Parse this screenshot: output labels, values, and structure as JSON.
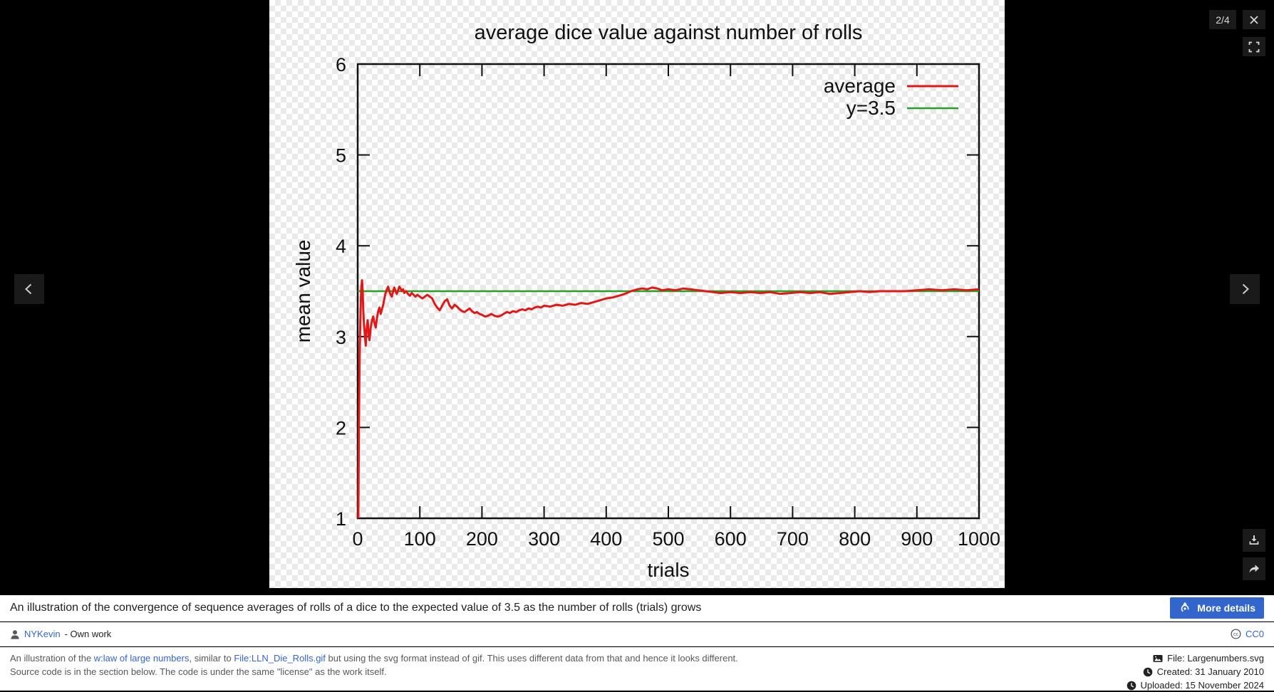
{
  "viewer": {
    "counter": "2/4"
  },
  "caption": {
    "text": "An illustration of the convergence of sequence averages of rolls of a dice to the expected value of 3.5 as the number of rolls (trials) grows",
    "more_details_label": "More details"
  },
  "meta": {
    "author": "NYKevin",
    "author_suffix": "- Own work",
    "license": "CC0"
  },
  "description": {
    "part1": "An illustration of the ",
    "link1": "w:law of large numbers",
    "part2": ", similar to ",
    "link2": "File:LLN_Die_Rolls.gif",
    "part3": " but using the svg format instead of gif. This uses different data from that and hence it looks different.",
    "line2": "Source code is in the section below. The code is under the same \"license\" as the work itself."
  },
  "file_info": [
    {
      "icon": "image-icon",
      "label": "File: Largenumbers.svg"
    },
    {
      "icon": "clock-icon",
      "label": "Created: 31 January 2010"
    },
    {
      "icon": "clock-icon",
      "label": "Uploaded: 15 November 2024"
    }
  ],
  "colors": {
    "accent_blue": "#3366cc",
    "line_red": "#e01818",
    "line_green": "#28a028",
    "canvas_checker": "#e9e9e9"
  },
  "chart_data": {
    "type": "line",
    "title": "average dice value against number of rolls",
    "xlabel": "trials",
    "ylabel": "mean value",
    "xlim": [
      0,
      1000
    ],
    "ylim": [
      1,
      6
    ],
    "x_ticks": [
      0,
      100,
      200,
      300,
      400,
      500,
      600,
      700,
      800,
      900,
      1000
    ],
    "y_ticks": [
      1,
      2,
      3,
      4,
      5,
      6
    ],
    "grid": false,
    "legend_position": "top-right",
    "series": [
      {
        "name": "average",
        "color": "#e01818",
        "width": 3,
        "points": [
          [
            1,
            1.0
          ],
          [
            2,
            2.0
          ],
          [
            3,
            2.7
          ],
          [
            4,
            3.1
          ],
          [
            5,
            3.4
          ],
          [
            6,
            3.55
          ],
          [
            7,
            3.62
          ],
          [
            8,
            3.5
          ],
          [
            9,
            3.3
          ],
          [
            10,
            3.15
          ],
          [
            12,
            2.98
          ],
          [
            13,
            2.9
          ],
          [
            14,
            3.05
          ],
          [
            15,
            3.12
          ],
          [
            16,
            3.18
          ],
          [
            17,
            3.1
          ],
          [
            18,
            3.0
          ],
          [
            19,
            2.96
          ],
          [
            21,
            3.1
          ],
          [
            23,
            3.18
          ],
          [
            25,
            3.22
          ],
          [
            27,
            3.15
          ],
          [
            29,
            3.1
          ],
          [
            31,
            3.2
          ],
          [
            33,
            3.28
          ],
          [
            35,
            3.32
          ],
          [
            37,
            3.25
          ],
          [
            39,
            3.3
          ],
          [
            41,
            3.35
          ],
          [
            43,
            3.42
          ],
          [
            45,
            3.48
          ],
          [
            47,
            3.52
          ],
          [
            49,
            3.55
          ],
          [
            51,
            3.5
          ],
          [
            53,
            3.46
          ],
          [
            55,
            3.44
          ],
          [
            57,
            3.5
          ],
          [
            59,
            3.54
          ],
          [
            61,
            3.5
          ],
          [
            63,
            3.47
          ],
          [
            65,
            3.51
          ],
          [
            67,
            3.55
          ],
          [
            69,
            3.53
          ],
          [
            71,
            3.5
          ],
          [
            73,
            3.52
          ],
          [
            75,
            3.48
          ],
          [
            78,
            3.5
          ],
          [
            81,
            3.47
          ],
          [
            84,
            3.45
          ],
          [
            87,
            3.48
          ],
          [
            90,
            3.46
          ],
          [
            93,
            3.44
          ],
          [
            96,
            3.46
          ],
          [
            100,
            3.44
          ],
          [
            104,
            3.42
          ],
          [
            108,
            3.44
          ],
          [
            112,
            3.46
          ],
          [
            116,
            3.44
          ],
          [
            120,
            3.42
          ],
          [
            124,
            3.36
          ],
          [
            128,
            3.32
          ],
          [
            132,
            3.29
          ],
          [
            136,
            3.34
          ],
          [
            140,
            3.39
          ],
          [
            144,
            3.41
          ],
          [
            148,
            3.34
          ],
          [
            152,
            3.31
          ],
          [
            156,
            3.35
          ],
          [
            160,
            3.33
          ],
          [
            164,
            3.3
          ],
          [
            168,
            3.28
          ],
          [
            172,
            3.27
          ],
          [
            176,
            3.29
          ],
          [
            180,
            3.31
          ],
          [
            184,
            3.28
          ],
          [
            188,
            3.26
          ],
          [
            192,
            3.27
          ],
          [
            196,
            3.25
          ],
          [
            200,
            3.24
          ],
          [
            205,
            3.22
          ],
          [
            210,
            3.23
          ],
          [
            215,
            3.25
          ],
          [
            220,
            3.23
          ],
          [
            225,
            3.22
          ],
          [
            230,
            3.23
          ],
          [
            235,
            3.25
          ],
          [
            240,
            3.27
          ],
          [
            245,
            3.26
          ],
          [
            250,
            3.28
          ],
          [
            255,
            3.27
          ],
          [
            260,
            3.29
          ],
          [
            265,
            3.3
          ],
          [
            270,
            3.29
          ],
          [
            275,
            3.31
          ],
          [
            280,
            3.3
          ],
          [
            285,
            3.32
          ],
          [
            290,
            3.33
          ],
          [
            295,
            3.32
          ],
          [
            300,
            3.34
          ],
          [
            310,
            3.33
          ],
          [
            320,
            3.35
          ],
          [
            330,
            3.34
          ],
          [
            340,
            3.36
          ],
          [
            350,
            3.35
          ],
          [
            360,
            3.37
          ],
          [
            370,
            3.36
          ],
          [
            380,
            3.38
          ],
          [
            390,
            3.4
          ],
          [
            400,
            3.42
          ],
          [
            410,
            3.43
          ],
          [
            420,
            3.45
          ],
          [
            430,
            3.47
          ],
          [
            440,
            3.5
          ],
          [
            450,
            3.52
          ],
          [
            458,
            3.53
          ],
          [
            466,
            3.52
          ],
          [
            474,
            3.54
          ],
          [
            482,
            3.53
          ],
          [
            490,
            3.51
          ],
          [
            500,
            3.52
          ],
          [
            512,
            3.51
          ],
          [
            524,
            3.53
          ],
          [
            536,
            3.52
          ],
          [
            548,
            3.51
          ],
          [
            560,
            3.5
          ],
          [
            572,
            3.49
          ],
          [
            584,
            3.48
          ],
          [
            600,
            3.49
          ],
          [
            616,
            3.48
          ],
          [
            632,
            3.49
          ],
          [
            648,
            3.48
          ],
          [
            664,
            3.49
          ],
          [
            680,
            3.47
          ],
          [
            696,
            3.48
          ],
          [
            712,
            3.49
          ],
          [
            728,
            3.48
          ],
          [
            744,
            3.49
          ],
          [
            760,
            3.47
          ],
          [
            776,
            3.48
          ],
          [
            792,
            3.49
          ],
          [
            808,
            3.5
          ],
          [
            824,
            3.49
          ],
          [
            840,
            3.5
          ],
          [
            860,
            3.5
          ],
          [
            880,
            3.5
          ],
          [
            900,
            3.51
          ],
          [
            920,
            3.52
          ],
          [
            940,
            3.51
          ],
          [
            960,
            3.52
          ],
          [
            980,
            3.51
          ],
          [
            1000,
            3.52
          ]
        ]
      },
      {
        "name": "y=3.5",
        "color": "#28a028",
        "width": 2.5,
        "points": [
          [
            0,
            3.5
          ],
          [
            1000,
            3.5
          ]
        ]
      }
    ]
  }
}
